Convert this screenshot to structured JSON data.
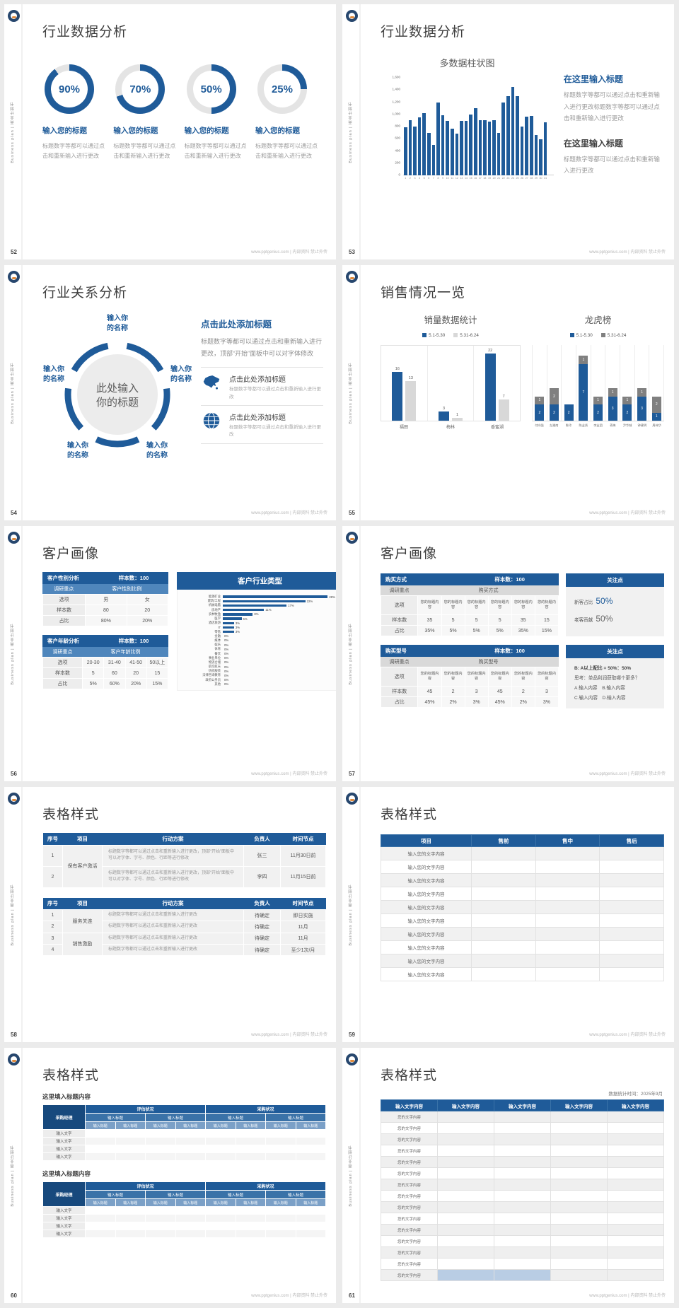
{
  "page": {
    "footer_site": "www.pptgenius.com | 内部资料 禁止外传",
    "sidebar_text": "Business plan | 商业计划书"
  },
  "colors": {
    "primary": "#1f5b99",
    "primary_mid": "#4f86bc",
    "track": "#e4e4e4",
    "bar_light": "#d8d8d8",
    "bar_dark": "#808080"
  },
  "slides": {
    "s52": {
      "page_num": "52",
      "title": "行业数据分析",
      "donuts": [
        {
          "pct": 90,
          "label": "90%",
          "heading": "输入您的标题",
          "desc": "标题数字等都可以通过点击和重新输入进行更改"
        },
        {
          "pct": 70,
          "label": "70%",
          "heading": "输入您的标题",
          "desc": "标题数字等都可以通过点击和重新输入进行更改"
        },
        {
          "pct": 50,
          "label": "50%",
          "heading": "输入您的标题",
          "desc": "标题数字等都可以通过点击和重新输入进行更改"
        },
        {
          "pct": 25,
          "label": "25%",
          "heading": "输入您的标题",
          "desc": "标题数字等都可以通过点击和重新输入进行更改"
        }
      ]
    },
    "s53": {
      "page_num": "53",
      "title": "行业数据分析",
      "right": {
        "heading1": "在这里输入标题",
        "body1": "标题数字等都可以通过点击和重新输入进行更改标题数字等都可以通过点击和重新输入进行更改",
        "heading2": "在这里输入标题",
        "body2": "标题数字等都可以通过点击和重新输入进行更改"
      }
    },
    "s54": {
      "page_num": "54",
      "title": "行业关系分析",
      "diagram": {
        "center_line1": "此处输入",
        "center_line2": "你的标题",
        "node_line1": "输入你",
        "node_line2": "的名称"
      },
      "right": {
        "heading": "点击此处添加标题",
        "body": "标题数字等都可以通过点击和重新输入进行更改，顶部“开始”面板中可以对字体修改",
        "items": [
          {
            "icon": "china-map-icon",
            "title": "点击此处添加标题",
            "desc": "标题数字等都可以通过点击和重新输入进行更改"
          },
          {
            "icon": "globe-icon",
            "title": "点击此处添加标题",
            "desc": "标题数字等都可以通过点击和重新输入进行更改"
          }
        ]
      }
    },
    "s55": {
      "page_num": "55",
      "title": "销售情况一览"
    },
    "s56": {
      "page_num": "56",
      "title": "客户画像",
      "gender_table": {
        "title": "客户性别分析",
        "sample": "样本数：100",
        "sub_left": "调研重点",
        "sub_right": "客户性别比例",
        "rows": [
          [
            "选项",
            "男",
            "女"
          ],
          [
            "样本数",
            "80",
            "20"
          ],
          [
            "占比",
            "80%",
            "20%"
          ]
        ]
      },
      "age_table": {
        "title": "客户年龄分析",
        "sample": "样本数：100",
        "sub_left": "调研重点",
        "sub_right": "客户年龄比例",
        "rows": [
          [
            "选项",
            "20-30",
            "31-40",
            "41-50",
            "50以上"
          ],
          [
            "样本数",
            "5",
            "60",
            "20",
            "15"
          ],
          [
            "占比",
            "5%",
            "60%",
            "20%",
            "15%"
          ]
        ]
      }
    },
    "s57": {
      "page_num": "57",
      "title": "客户画像",
      "method_table": {
        "title": "购买方式",
        "sample": "样本数：100",
        "sub_left": "调研重点",
        "sub_right": "购买方式",
        "rows": [
          [
            "选项",
            "您的标题内容",
            "您的标题内容",
            "您的标题内容",
            "您的标题内容",
            "您的标题内容",
            "您的标题内容"
          ],
          [
            "样本数",
            "35",
            "5",
            "5",
            "5",
            "35",
            "15"
          ],
          [
            "占比",
            "35%",
            "5%",
            "5%",
            "5%",
            "35%",
            "15%"
          ]
        ]
      },
      "focus1": {
        "header": "关注点",
        "line1_label": "新客占比",
        "line1_value": "50%",
        "line2_label": "老客贡献",
        "line2_value": "50%"
      },
      "model_table": {
        "title": "购买型号",
        "sample": "样本数：100",
        "sub_left": "调研重点",
        "sub_right": "购买型号",
        "rows": [
          [
            "选项",
            "您的标题内容",
            "您的标题内容",
            "您的标题内容",
            "您的标题内容",
            "您的标题内容",
            "您的标题内容"
          ],
          [
            "样本数",
            "45",
            "2",
            "3",
            "45",
            "2",
            "3"
          ],
          [
            "占比",
            "45%",
            "2%",
            "3%",
            "45%",
            "2%",
            "3%"
          ]
        ]
      },
      "focus2": {
        "header": "关注点",
        "line1": "B: A以上配比 = 50%：50%",
        "line2": "思考：单品利润获取哪个更多？",
        "line3": "A.输入内容　B.输入内容",
        "line4": "C.输入内容　D.输入内容"
      }
    },
    "s58": {
      "page_num": "58",
      "title": "表格样式",
      "table1": {
        "headers": [
          "序号",
          "项目",
          "行动方案",
          "负责人",
          "时间节点"
        ],
        "rows": [
          {
            "num": "1",
            "project": "保有客户激活",
            "project_span": 2,
            "plan": "标题数字等都可以通过点击和重新输入进行更改，顶部“开始”面板中可以对字体、字号、颜色、行距等进行修改",
            "owner": "张三",
            "time": "11月30日前"
          },
          {
            "num": "2",
            "plan": "标题数字等都可以通过点击和重新输入进行更改，顶部“开始”面板中可以对字体、字号、颜色、行距等进行修改",
            "owner": "李四",
            "time": "11月15日前"
          }
        ]
      },
      "table2": {
        "headers": [
          "序号",
          "项目",
          "行动方案",
          "负责人",
          "时间节点"
        ],
        "rows": [
          {
            "num": "1",
            "project": "服务关连",
            "project_span": 2,
            "plan": "标题数字等都可以通过点击和重新输入进行更改",
            "owner": "待确定",
            "time": "即日实施"
          },
          {
            "num": "2",
            "plan": "标题数字等都可以通过点击和重新输入进行更改",
            "owner": "待确定",
            "time": "11月"
          },
          {
            "num": "3",
            "project": "销售激励",
            "project_span": 2,
            "plan": "标题数字等都可以通过点击和重新输入进行更改",
            "owner": "待确定",
            "time": "11月"
          },
          {
            "num": "4",
            "plan": "标题数字等都可以通过点击和重新输入进行更改",
            "owner": "待确定",
            "time": "至少1次/月"
          }
        ]
      }
    },
    "s59": {
      "page_num": "59",
      "title": "表格样式",
      "table": {
        "headers": [
          "项目",
          "售前",
          "售中",
          "售后"
        ],
        "row_label": "输入您的文字内容",
        "row_count": 10
      }
    },
    "s60": {
      "page_num": "60",
      "title": "表格样式",
      "blocks": [
        {
          "label": "这里填入标题内容"
        },
        {
          "label": "这里填入标题内容"
        }
      ],
      "table": {
        "corner": "采购经理",
        "groups": [
          "评估状况",
          "采购状况"
        ],
        "mid_header": "输入标题",
        "col_header": "输入标题",
        "row_label": "输入文字",
        "row_count": 4
      }
    },
    "s61": {
      "page_num": "61",
      "title": "表格样式",
      "timestamp": "数据统计时间：2025年9月",
      "table": {
        "header": "输入文字内容",
        "col_count": 5,
        "row_label": "您的文字内容",
        "row_count": 15,
        "highlight_row": 15,
        "highlight_cols": [
          2,
          3
        ],
        "highlight_color": "#b9cde4"
      }
    }
  },
  "chart_data": [
    {
      "id": "donuts-52",
      "type": "pie",
      "labels": [
        "90%",
        "70%",
        "50%",
        "25%"
      ],
      "values": [
        90,
        70,
        50,
        25
      ]
    },
    {
      "id": "bars-53",
      "type": "bar",
      "title": "多数据柱状图",
      "x": [
        1,
        2,
        3,
        4,
        5,
        6,
        7,
        8,
        9,
        10,
        11,
        12,
        13,
        14,
        15,
        16,
        17,
        18,
        19,
        20,
        21,
        22,
        23,
        24,
        25,
        26,
        27,
        28,
        29,
        30,
        31
      ],
      "values": [
        790,
        900,
        800,
        950,
        1020,
        700,
        500,
        1200,
        990,
        890,
        770,
        690,
        890,
        890,
        1000,
        1100,
        900,
        900,
        880,
        900,
        700,
        1190,
        1300,
        1450,
        1300,
        800,
        960,
        970,
        660,
        590,
        870
      ],
      "ylim": [
        0,
        1600
      ],
      "yticks": [
        "0",
        "200",
        "400",
        "600",
        "800",
        "1,000",
        "1,200",
        "1,400",
        "1,600"
      ]
    },
    {
      "id": "sales-55",
      "type": "bar",
      "title": "销量数据统计",
      "categories": [
        "福田",
        "梅林",
        "香蜜湖"
      ],
      "series": [
        {
          "name": "5.1-5.30",
          "color": "#1f5b99",
          "values": [
            16,
            3,
            22
          ]
        },
        {
          "name": "5.31-6.24",
          "color": "#d8d8d8",
          "values": [
            13,
            1,
            7
          ]
        }
      ],
      "ylim": [
        0,
        24
      ]
    },
    {
      "id": "ranking-55",
      "type": "stacked-bar",
      "title": "龙虎榜",
      "categories": [
        "付向强",
        "左湘南",
        "陈玲",
        "陈业贤",
        "李业团",
        "蒋梅",
        "尹华城",
        "钟建明",
        "周伟华"
      ],
      "series": [
        {
          "name": "5.1-5.30",
          "color": "#1f5b99",
          "values": [
            2,
            2,
            2,
            7,
            2,
            3,
            2,
            3,
            1
          ]
        },
        {
          "name": "5.31-6.24",
          "color": "#808080",
          "values": [
            1,
            2,
            0,
            1,
            1,
            1,
            1,
            1,
            2
          ]
        }
      ],
      "ylim": [
        0,
        8.5
      ]
    },
    {
      "id": "industry-56",
      "type": "bar-horizontal",
      "title": "客户行业类型",
      "unit": "%",
      "categories": [
        "能源矿业",
        "建筑/工程",
        "机械电脑",
        "房地产",
        "农林牧渔",
        "医学",
        "酒店旅游",
        "IT",
        "零售",
        "金融",
        "媒体",
        "娱乐",
        "体育",
        "餐饮",
        "事业单位",
        "物流仓储",
        "航空航天",
        "纺织服装",
        "法律咨询教育",
        "政府公务员",
        "其他"
      ],
      "values": [
        28,
        22,
        17,
        11,
        8,
        5,
        3,
        3,
        3,
        0,
        0,
        0,
        0,
        0,
        0,
        0,
        0,
        0,
        0,
        0,
        0
      ]
    }
  ]
}
